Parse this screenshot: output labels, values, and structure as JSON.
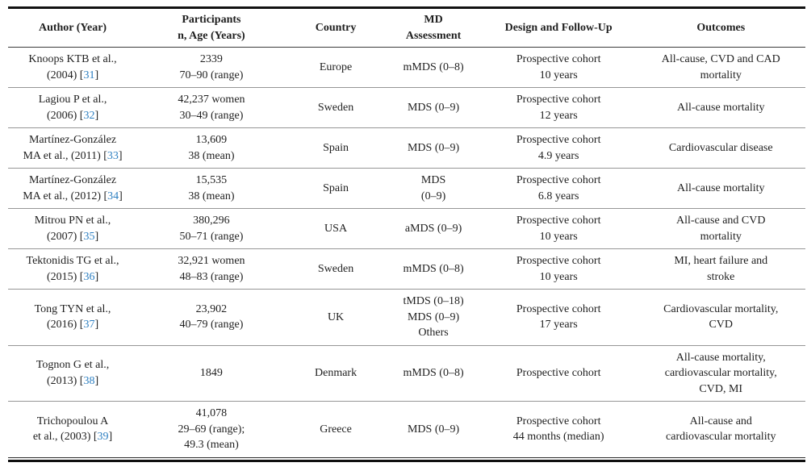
{
  "table": {
    "colors": {
      "text": "#1f1f1f",
      "reference_link": "#2d7fc1",
      "row_divider": "#969696",
      "heavy_rule": "#111111"
    },
    "headers": [
      {
        "lines": [
          "Author (Year)"
        ]
      },
      {
        "lines": [
          "Participants",
          "n, Age (Years)"
        ]
      },
      {
        "lines": [
          "Country"
        ]
      },
      {
        "lines": [
          "MD",
          "Assessment"
        ]
      },
      {
        "lines": [
          "Design and Follow-Up"
        ]
      },
      {
        "lines": [
          "Outcomes"
        ]
      }
    ],
    "rows": [
      {
        "author": [
          "Knoops KTB et al.,",
          "(2004) [31]"
        ],
        "reference": "31",
        "participants": [
          "2339",
          "70–90 (range)"
        ],
        "country": [
          "Europe"
        ],
        "md_assessment": [
          "mMDS (0–8)"
        ],
        "design_follow_up": [
          "Prospective cohort",
          "10 years"
        ],
        "outcomes": [
          "All-cause, CVD and CAD",
          "mortality"
        ]
      },
      {
        "author": [
          "Lagiou P et al.,",
          "(2006) [32]"
        ],
        "reference": "32",
        "participants": [
          "42,237 women",
          "30–49 (range)"
        ],
        "country": [
          "Sweden"
        ],
        "md_assessment": [
          "MDS (0–9)"
        ],
        "design_follow_up": [
          "Prospective cohort",
          "12 years"
        ],
        "outcomes": [
          "All-cause mortality"
        ]
      },
      {
        "author": [
          "Martínez-González",
          "MA et al., (2011) [33]"
        ],
        "reference": "33",
        "participants": [
          "13,609",
          "38 (mean)"
        ],
        "country": [
          "Spain"
        ],
        "md_assessment": [
          "MDS (0–9)"
        ],
        "design_follow_up": [
          "Prospective cohort",
          "4.9 years"
        ],
        "outcomes": [
          "Cardiovascular disease"
        ]
      },
      {
        "author": [
          "Martínez-González",
          "MA et al., (2012) [34]"
        ],
        "reference": "34",
        "participants": [
          "15,535",
          "38 (mean)"
        ],
        "country": [
          "Spain"
        ],
        "md_assessment": [
          "MDS",
          "(0–9)"
        ],
        "design_follow_up": [
          "Prospective cohort",
          "6.8 years"
        ],
        "outcomes": [
          "All-cause mortality"
        ]
      },
      {
        "author": [
          "Mitrou PN et al.,",
          "(2007) [35]"
        ],
        "reference": "35",
        "participants": [
          "380,296",
          "50–71 (range)"
        ],
        "country": [
          "USA"
        ],
        "md_assessment": [
          "aMDS (0–9)"
        ],
        "design_follow_up": [
          "Prospective cohort",
          "10 years"
        ],
        "outcomes": [
          "All-cause and CVD",
          "mortality"
        ]
      },
      {
        "author": [
          "Tektonidis TG et al.,",
          "(2015) [36]"
        ],
        "reference": "36",
        "participants": [
          "32,921 women",
          "48–83 (range)"
        ],
        "country": [
          "Sweden"
        ],
        "md_assessment": [
          "mMDS (0–8)"
        ],
        "design_follow_up": [
          "Prospective cohort",
          "10 years"
        ],
        "outcomes": [
          "MI, heart failure and",
          "stroke"
        ]
      },
      {
        "author": [
          "Tong TYN et al.,",
          "(2016) [37]"
        ],
        "reference": "37",
        "participants": [
          "23,902",
          "40–79 (range)"
        ],
        "country": [
          "UK"
        ],
        "md_assessment": [
          "tMDS (0–18)",
          "MDS (0–9)",
          "Others"
        ],
        "design_follow_up": [
          "Prospective cohort",
          "17 years"
        ],
        "outcomes": [
          "Cardiovascular mortality,",
          "CVD"
        ]
      },
      {
        "author": [
          "Tognon G et al.,",
          "(2013) [38]"
        ],
        "reference": "38",
        "participants": [
          "1849"
        ],
        "country": [
          "Denmark"
        ],
        "md_assessment": [
          "mMDS (0–8)"
        ],
        "design_follow_up": [
          "Prospective cohort"
        ],
        "outcomes": [
          "All-cause mortality,",
          "cardiovascular mortality,",
          "CVD, MI"
        ]
      },
      {
        "author": [
          "Trichopoulou A",
          "et al., (2003) [39]"
        ],
        "reference": "39",
        "participants": [
          "41,078",
          "29–69 (range);",
          "49.3 (mean)"
        ],
        "country": [
          "Greece"
        ],
        "md_assessment": [
          "MDS (0–9)"
        ],
        "design_follow_up": [
          "Prospective cohort",
          "44 months (median)"
        ],
        "outcomes": [
          "All-cause and",
          "cardiovascular mortality"
        ]
      }
    ]
  }
}
